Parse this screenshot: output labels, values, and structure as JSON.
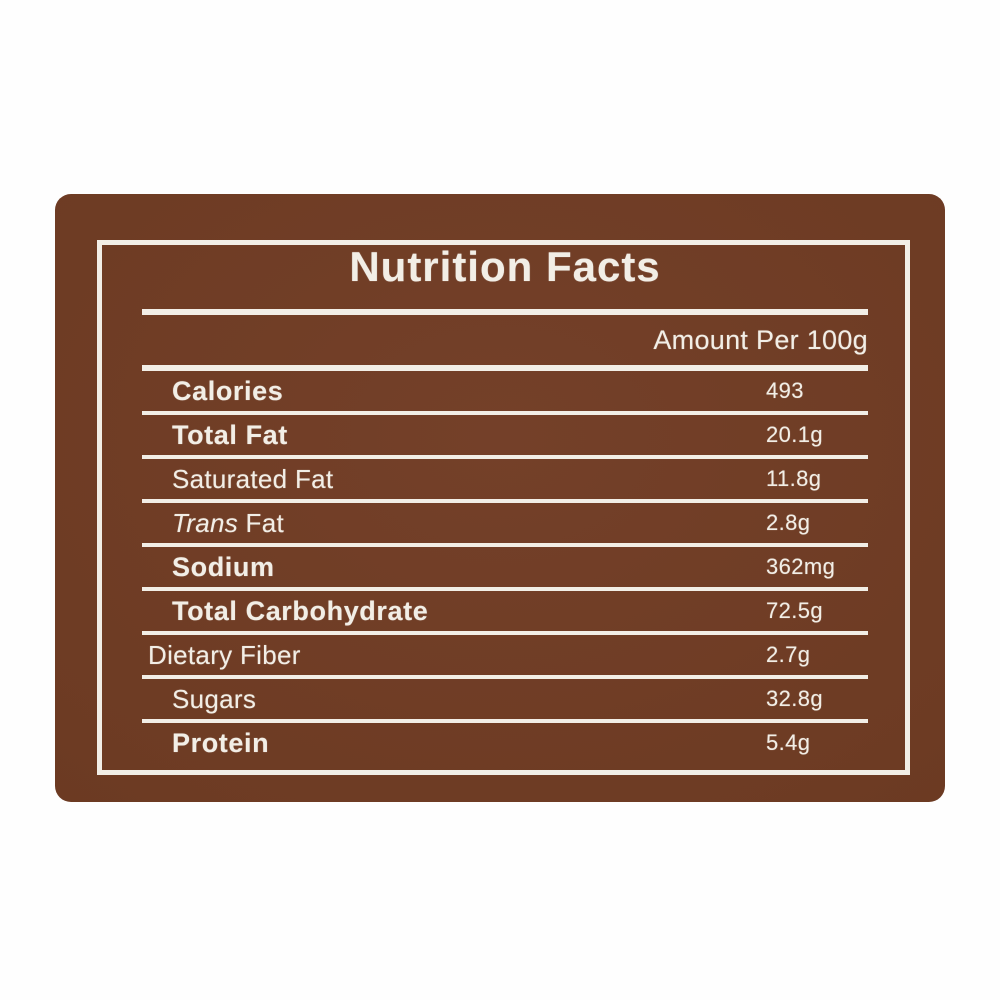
{
  "colors": {
    "panel_brown": "#6d3b23",
    "panel_brown_highlight": "#744029",
    "panel_brown_shadow": "#65361f",
    "ink_offwhite": "#f2eee6",
    "page_background": "#fefefe"
  },
  "label": {
    "title": "Nutrition Facts",
    "amount_header": "Amount Per 100g",
    "rows": [
      {
        "label": "Calories",
        "value": "493"
      },
      {
        "label": "Total Fat",
        "value": "20.1g"
      },
      {
        "label": "Saturated Fat",
        "value": "11.8g"
      },
      {
        "label_italic": "Trans",
        "label": " Fat",
        "value": "2.8g"
      },
      {
        "label": "Sodium",
        "value": "362mg"
      },
      {
        "label": "Total Carbohydrate",
        "value": "72.5g"
      },
      {
        "label": "Dietary Fiber",
        "value": "2.7g"
      },
      {
        "label": "Sugars",
        "value": "32.8g"
      },
      {
        "label": "Protein",
        "value": "5.4g"
      }
    ]
  }
}
